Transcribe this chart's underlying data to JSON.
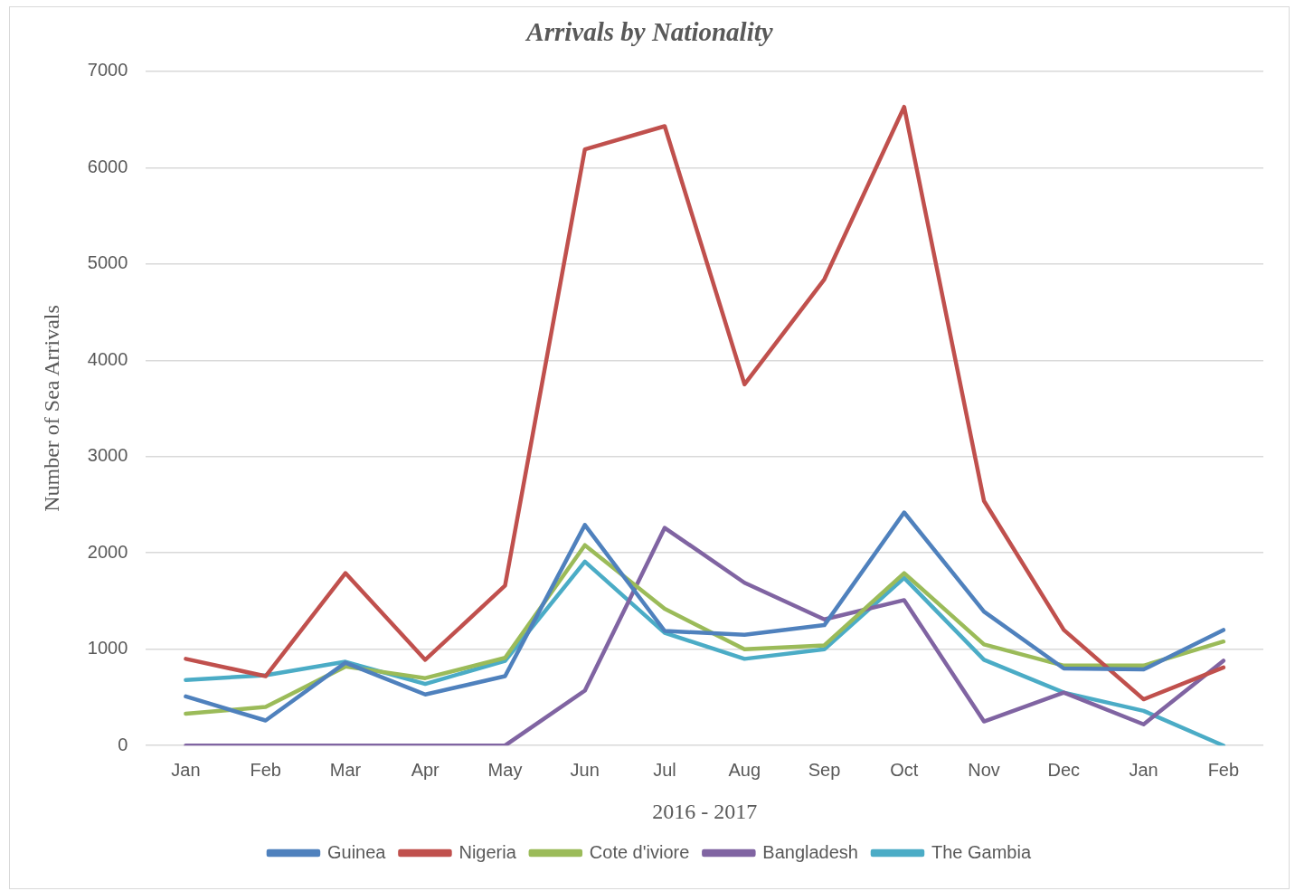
{
  "chart_data": {
    "type": "line",
    "title": "Arrivals by Nationality",
    "xlabel": "2016 - 2017",
    "ylabel": "Number of Sea Arrivals",
    "categories": [
      "Jan",
      "Feb",
      "Mar",
      "Apr",
      "May",
      "Jun",
      "Jul",
      "Aug",
      "Sep",
      "Oct",
      "Nov",
      "Dec",
      "Jan",
      "Feb"
    ],
    "series": [
      {
        "name": "Guinea",
        "color": "#4f81bd",
        "values": [
          510,
          260,
          860,
          530,
          720,
          2290,
          1190,
          1150,
          1250,
          2420,
          1390,
          800,
          790,
          1200
        ]
      },
      {
        "name": "Nigeria",
        "color": "#c0504d",
        "values": [
          900,
          720,
          1790,
          890,
          1660,
          6190,
          6430,
          3750,
          4840,
          6630,
          2540,
          1200,
          480,
          810
        ]
      },
      {
        "name": "Cote d'iviore",
        "color": "#9bbb59",
        "values": [
          330,
          400,
          820,
          700,
          910,
          2080,
          1420,
          1000,
          1040,
          1790,
          1050,
          830,
          830,
          1080
        ]
      },
      {
        "name": "Bangladesh",
        "color": "#8064a2",
        "values": [
          0,
          0,
          0,
          0,
          0,
          570,
          2260,
          1690,
          1310,
          1510,
          250,
          550,
          220,
          880
        ]
      },
      {
        "name": "The Gambia",
        "color": "#4bacc6",
        "values": [
          680,
          730,
          870,
          640,
          880,
          1910,
          1170,
          900,
          1000,
          1740,
          890,
          550,
          360,
          0
        ]
      }
    ],
    "ylim": [
      0,
      7000
    ],
    "yticks": [
      0,
      1000,
      2000,
      3000,
      4000,
      5000,
      6000,
      7000
    ],
    "grid": "y",
    "legend": "bottom",
    "marker": "none",
    "line_style": "solid"
  }
}
